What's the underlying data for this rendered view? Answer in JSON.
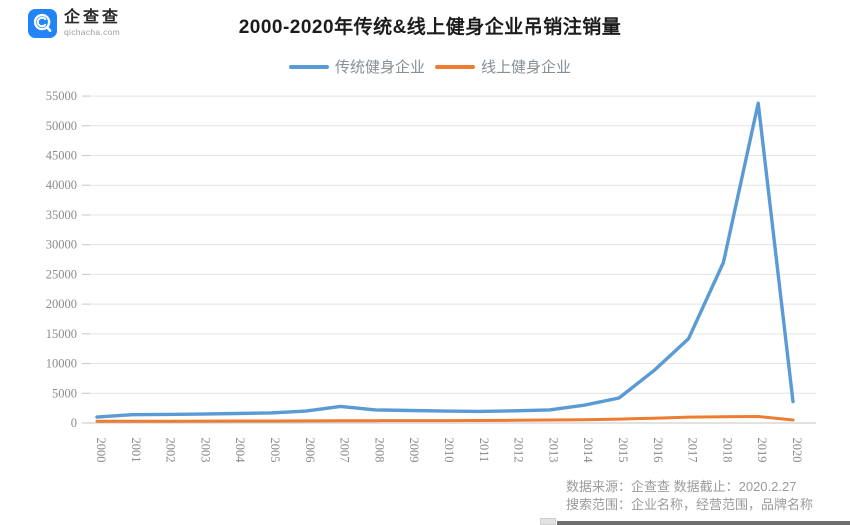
{
  "brand": {
    "name": "企查查",
    "domain": "qichacha.com",
    "logo_color": "#2285f7"
  },
  "header": {
    "title": "2000-2020年传统&线上健身企业吊销注销量"
  },
  "legend": [
    {
      "label": "传统健身企业",
      "color": "#5b9bd5"
    },
    {
      "label": "线上健身企业",
      "color": "#ed7d31"
    }
  ],
  "chart_data": {
    "type": "line",
    "title": "2000-2020年传统&线上健身企业吊销注销量",
    "categories": [
      "2000",
      "2001",
      "2002",
      "2003",
      "2004",
      "2005",
      "2006",
      "2007",
      "2008",
      "2009",
      "2010",
      "2011",
      "2012",
      "2013",
      "2014",
      "2015",
      "2016",
      "2017",
      "2018",
      "2019",
      "2020"
    ],
    "series": [
      {
        "name": "传统健身企业",
        "color": "#5b9bd5",
        "values": [
          1000,
          1400,
          1450,
          1500,
          1600,
          1700,
          2000,
          2800,
          2200,
          2100,
          2000,
          1950,
          2050,
          2200,
          3000,
          4200,
          8800,
          14200,
          27000,
          53800,
          3600
        ]
      },
      {
        "name": "线上健身企业",
        "color": "#ed7d31",
        "values": [
          300,
          300,
          310,
          320,
          330,
          340,
          360,
          380,
          380,
          400,
          400,
          420,
          450,
          500,
          550,
          650,
          800,
          1000,
          1050,
          1100,
          500
        ]
      }
    ],
    "ylim": [
      0,
      55000
    ],
    "yticks": [
      0,
      5000,
      10000,
      15000,
      20000,
      25000,
      30000,
      35000,
      40000,
      45000,
      50000,
      55000
    ],
    "grid": true,
    "legend_position": "top",
    "xlabel": "",
    "ylabel": ""
  },
  "footer": {
    "line1": "数据来源：企查查 数据截止：2020.2.27",
    "line2": "搜索范围：企业名称，经营范围，品牌名称"
  },
  "style": {
    "gridline_color": "#e4e4e4",
    "axis_color": "#c6c6c6",
    "tick_label_color": "#8c8c8c"
  }
}
